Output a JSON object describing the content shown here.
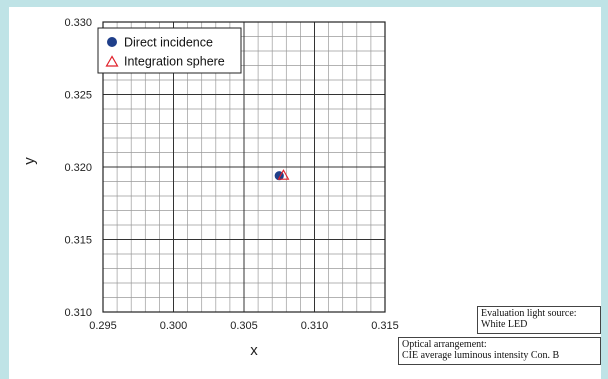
{
  "chart_data": {
    "type": "scatter",
    "title": "",
    "xlabel": "x",
    "ylabel": "y",
    "xlim": [
      0.295,
      0.315
    ],
    "ylim": [
      0.31,
      0.33
    ],
    "x_ticks": [
      "0.295",
      "0.300",
      "0.305",
      "0.310",
      "0.315"
    ],
    "y_ticks": [
      "0.310",
      "0.315",
      "0.320",
      "0.325",
      "0.330"
    ],
    "grid": true,
    "minor_grid_divisions": 5,
    "legend_position": "top-left",
    "series": [
      {
        "name": "Direct incidence",
        "marker": "filled-circle",
        "color": "#1f3f8a",
        "points": [
          [
            0.3075,
            0.3194
          ]
        ]
      },
      {
        "name": "Integration sphere",
        "marker": "open-triangle",
        "color": "#e0202a",
        "points": [
          [
            0.3078,
            0.3194
          ]
        ]
      }
    ]
  },
  "notes": {
    "evaluation": {
      "line1": "Evaluation light source:",
      "line2": "White LED"
    },
    "optical": {
      "line1": "Optical arrangement:",
      "line2": "CIE average luminous intensity Con. B"
    }
  }
}
